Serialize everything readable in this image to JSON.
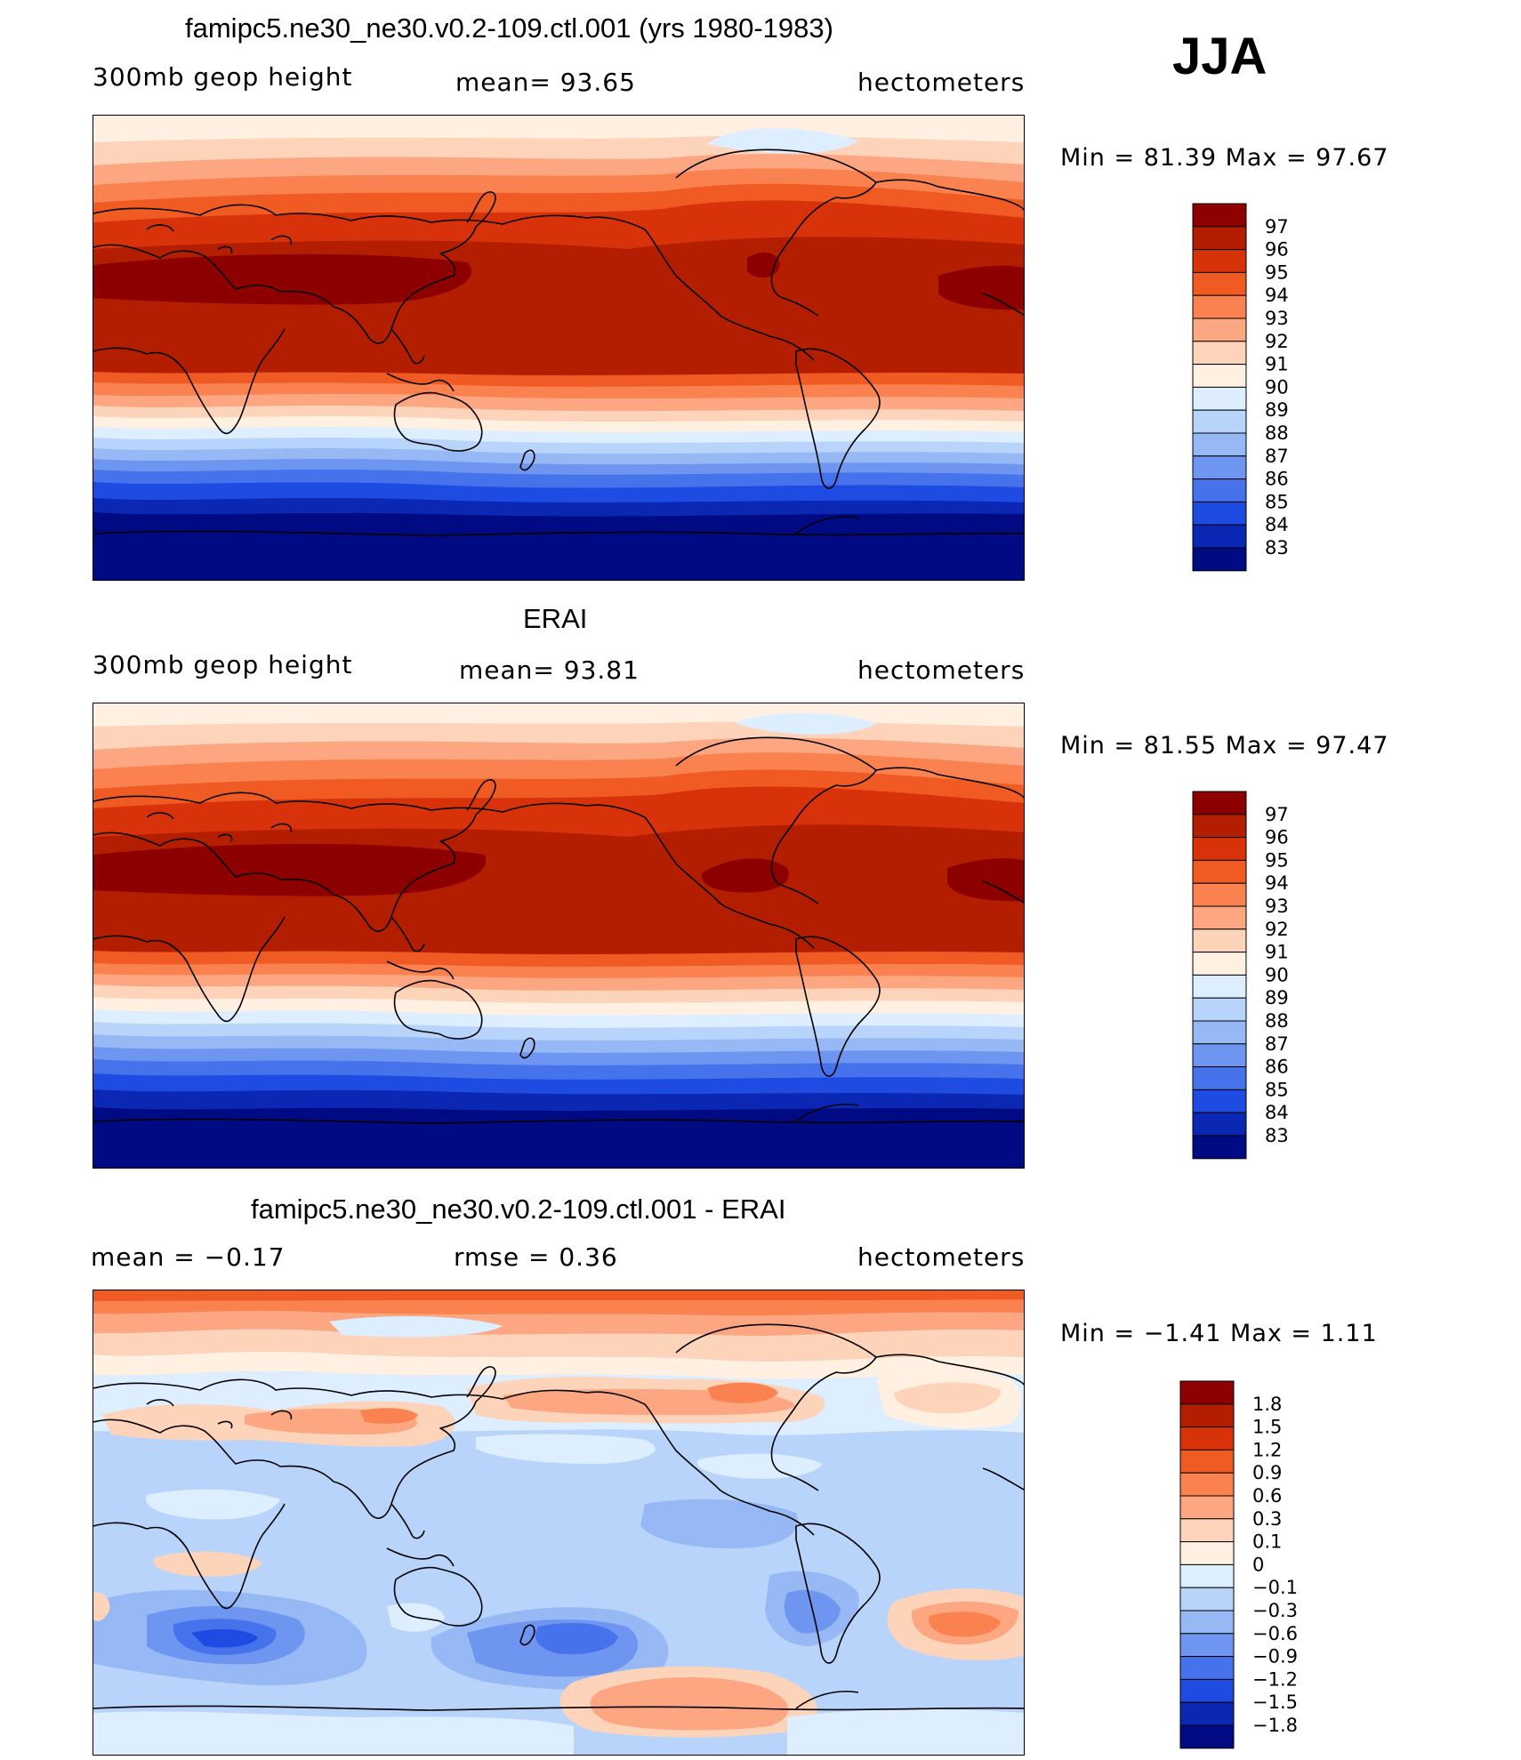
{
  "season": "JJA",
  "panels": [
    {
      "id": "model",
      "title": "famipc5.ne30_ne30.v0.2-109.ctl.001 (yrs 1980-1983)",
      "left_label": "300mb geop height",
      "center_label": "mean=  93.65",
      "units": "hectometers",
      "minmax": "Min =  81.39 Max =  97.67"
    },
    {
      "id": "obs",
      "title": "ERAI",
      "left_label": "300mb geop height",
      "center_label": "mean=  93.81",
      "units": "hectometers",
      "minmax": "Min =  81.55 Max =  97.47"
    },
    {
      "id": "diff",
      "title": "famipc5.ne30_ne30.v0.2-109.ctl.001 - ERAI",
      "left_label": "mean =  −0.17",
      "center_label": "rmse =   0.36",
      "units": "hectometers",
      "minmax": "Min =  −1.41 Max =   1.11"
    }
  ],
  "colorbar_abs": {
    "levels": [
      "97",
      "96",
      "95",
      "94",
      "93",
      "92",
      "91",
      "90",
      "89",
      "88",
      "87",
      "86",
      "85",
      "84",
      "83"
    ],
    "colors": [
      "#8c0000",
      "#b41e00",
      "#d7320a",
      "#f05a23",
      "#fa8250",
      "#fca682",
      "#fdd3b9",
      "#fff0e1",
      "#dceeff",
      "#b9d4fa",
      "#96b9f5",
      "#6e96f0",
      "#4673eb",
      "#1e4be1",
      "#0a28b4",
      "#000a82"
    ]
  },
  "colorbar_diff": {
    "levels": [
      "1.8",
      "1.5",
      "1.2",
      "0.9",
      "0.6",
      "0.3",
      "0.1",
      "0",
      "−0.1",
      "−0.3",
      "−0.6",
      "−0.9",
      "−1.2",
      "−1.5",
      "−1.8"
    ],
    "colors": [
      "#8c0000",
      "#b41e00",
      "#d7320a",
      "#f05a23",
      "#fa8250",
      "#fca682",
      "#fdd3b9",
      "#fff0e1",
      "#dceeff",
      "#b9d4fa",
      "#96b9f5",
      "#6e96f0",
      "#4673eb",
      "#1e4be1",
      "#0a28b4",
      "#000a82"
    ]
  }
}
